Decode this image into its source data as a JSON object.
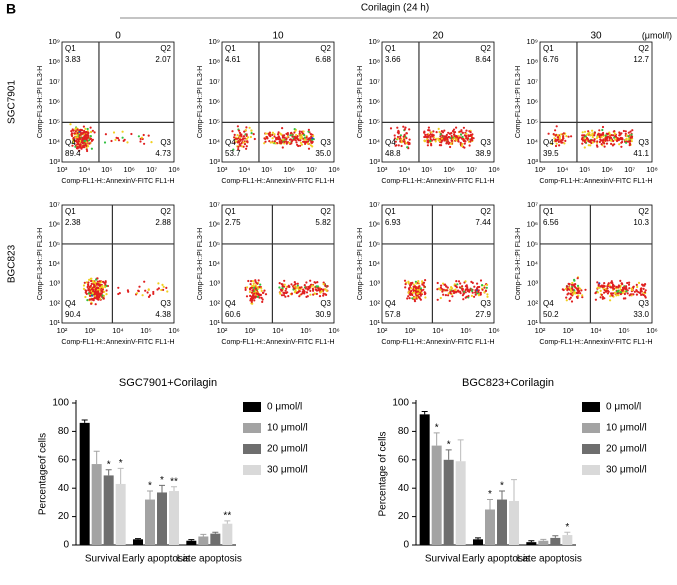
{
  "flow": {
    "header": {
      "panel": "B",
      "treatment": "Corilagin (24 h)",
      "unit": "(μmol/l)",
      "concentrations": [
        "0",
        "10",
        "20",
        "30"
      ]
    },
    "rows": [
      {
        "cell_line": "SGC7901",
        "x_label": "Comp-FL1-H::AnnexinV-FITC FL1-H",
        "y_label": "Comp-FL3-H::PI FL3-H",
        "xticks": [
          "10³",
          "10⁴",
          "10⁵",
          "10⁶",
          "10⁷",
          "10⁸"
        ],
        "yticks": [
          "10³",
          "10⁴",
          "10⁵",
          "10⁶",
          "10⁷",
          "10⁸",
          "10⁹"
        ],
        "quadrant_names": [
          "Q1",
          "Q2",
          "Q3",
          "Q4"
        ],
        "plots": [
          [
            "3.83",
            "2.07",
            "4.73",
            "89.4"
          ],
          [
            "4.61",
            "6.68",
            "35.0",
            "53.7"
          ],
          [
            "3.66",
            "8.64",
            "38.9",
            "48.8"
          ],
          [
            "6.76",
            "12.7",
            "41.1",
            "39.5"
          ]
        ]
      },
      {
        "cell_line": "BGC823",
        "x_label": "Comp-FL1-H::AnnexinV-FITC FL1-H",
        "y_label": "Comp-FL3-H::PI FL3-H",
        "xticks": [
          "10²",
          "10³",
          "10⁴",
          "10⁵",
          "10⁶"
        ],
        "yticks": [
          "10¹",
          "10²",
          "10³",
          "10⁴",
          "10⁵",
          "10⁶",
          "10⁷"
        ],
        "quadrant_names": [
          "Q1",
          "Q2",
          "Q3",
          "Q4"
        ],
        "plots": [
          [
            "2.38",
            "2.88",
            "4.38",
            "90.4"
          ],
          [
            "2.75",
            "5.82",
            "30.9",
            "60.6"
          ],
          [
            "6.93",
            "7.44",
            "27.9",
            "57.8"
          ],
          [
            "6.56",
            "10.3",
            "33.0",
            "50.2"
          ]
        ]
      }
    ]
  },
  "chart_data": [
    {
      "type": "bar",
      "title": "SGC7901+Corilagin",
      "y_label": "Percentageof cells",
      "categories": [
        "Survival",
        "Early apoptosis",
        "Late apoptosis"
      ],
      "ylim": [
        0,
        100
      ],
      "yticks": [
        0,
        20,
        40,
        60,
        80,
        100
      ],
      "series": [
        {
          "name": "0 μmol/l",
          "color": "#000000",
          "values": [
            86,
            4,
            3
          ],
          "errors": [
            2,
            0.5,
            0.8
          ],
          "significance": [
            null,
            null,
            null
          ]
        },
        {
          "name": "10 μmol/l",
          "color": "#a3a3a3",
          "values": [
            57,
            32,
            6
          ],
          "errors": [
            9,
            6,
            1.5
          ],
          "significance": [
            null,
            "*",
            null
          ]
        },
        {
          "name": "20 μmol/l",
          "color": "#6e6e6e",
          "values": [
            49,
            37,
            8
          ],
          "errors": [
            4,
            5,
            1
          ],
          "significance": [
            "*",
            "*",
            null
          ]
        },
        {
          "name": "30 μmol/l",
          "color": "#d9d9d9",
          "values": [
            43,
            38,
            15
          ],
          "errors": [
            11,
            3,
            2
          ],
          "significance": [
            "*",
            "**",
            "**"
          ]
        }
      ]
    },
    {
      "type": "bar",
      "title": "BGC823+Corilagin",
      "y_label": "Percentage of cells",
      "categories": [
        "Survival",
        "Early apoptosis",
        "Late apoptosis"
      ],
      "ylim": [
        0,
        100
      ],
      "yticks": [
        0,
        20,
        40,
        60,
        80,
        100
      ],
      "series": [
        {
          "name": "0 μmol/l",
          "color": "#000000",
          "values": [
            92,
            4,
            2
          ],
          "errors": [
            2,
            1,
            1
          ],
          "significance": [
            null,
            null,
            null
          ]
        },
        {
          "name": "10 μmol/l",
          "color": "#a3a3a3",
          "values": [
            70,
            25,
            3
          ],
          "errors": [
            9,
            7,
            1
          ],
          "significance": [
            "*",
            "*",
            null
          ]
        },
        {
          "name": "20 μmol/l",
          "color": "#6e6e6e",
          "values": [
            60,
            32,
            5
          ],
          "errors": [
            7,
            6,
            1.5
          ],
          "significance": [
            "*",
            "*",
            null
          ]
        },
        {
          "name": "30 μmol/l",
          "color": "#d9d9d9",
          "values": [
            59,
            31,
            7
          ],
          "errors": [
            15,
            15,
            2
          ],
          "significance": [
            null,
            null,
            "*"
          ]
        }
      ]
    }
  ]
}
